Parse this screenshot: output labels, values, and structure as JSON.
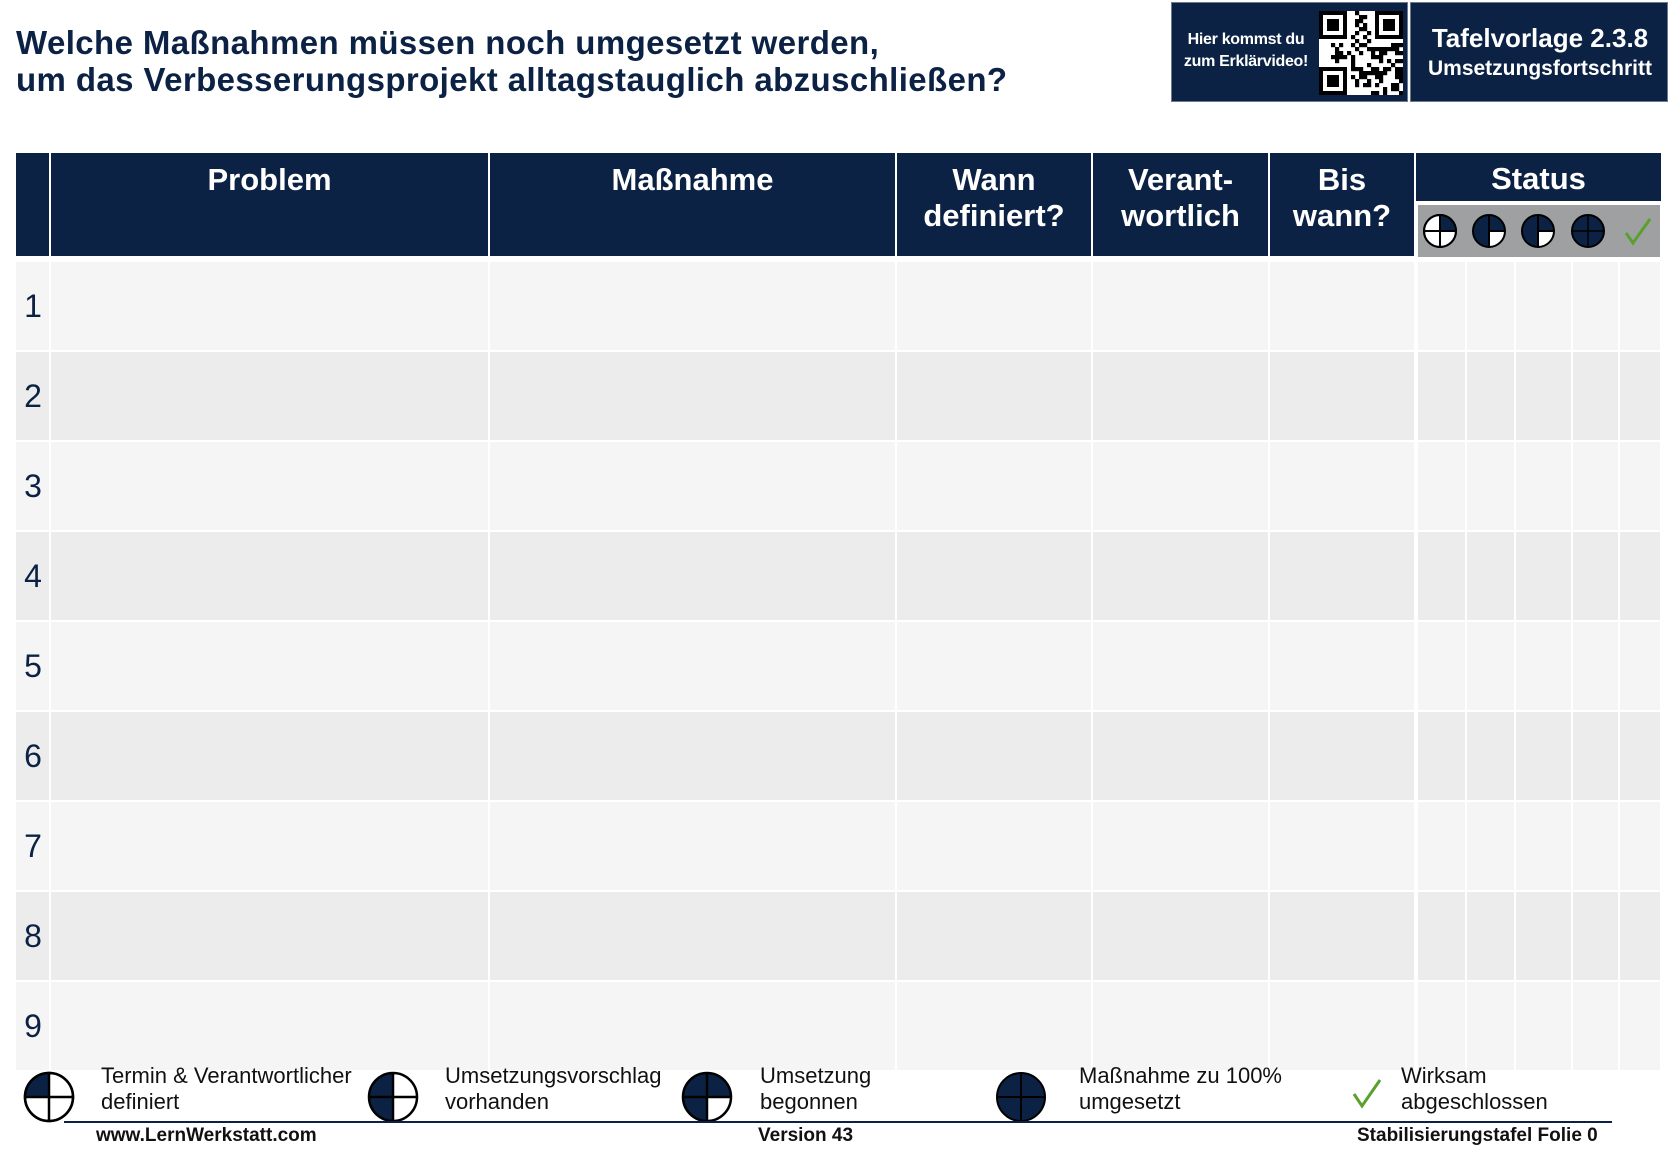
{
  "header": {
    "title_line1": "Welche Maßnahmen müssen noch umgesetzt werden,",
    "title_line2": "um das Verbesserungsprojekt alltagstauglich abzuschließen?",
    "qr_text_line1": "Hier kommst du",
    "qr_text_line2": "zum Erklärvideo!",
    "tafel_title": "Tafelvorlage 2.3.8",
    "tafel_subtitle": "Umsetzungsfortschritt"
  },
  "table": {
    "columns": {
      "problem": "Problem",
      "massnahme": "Maßnahme",
      "wann_1": "Wann",
      "wann_2": "definiert?",
      "verant_1": "Verant-",
      "verant_2": "wortlich",
      "bis_1": "Bis",
      "bis_2": "wann?",
      "status": "Status"
    },
    "status_icons": [
      "quarter-circle-icon",
      "half-circle-icon",
      "three-quarter-circle-icon",
      "full-circle-icon",
      "checkmark-icon"
    ],
    "rows": [
      "1",
      "2",
      "3",
      "4",
      "5",
      "6",
      "7",
      "8",
      "9"
    ]
  },
  "legend": [
    {
      "line1": "Termin & Verantwortlicher",
      "line2": "definiert",
      "icon": "quarter-circle-icon"
    },
    {
      "line1": "Umsetzungsvorschlag",
      "line2": "vorhanden",
      "icon": "half-circle-icon"
    },
    {
      "line1": "Umsetzung",
      "line2": "begonnen",
      "icon": "three-quarter-circle-icon"
    },
    {
      "line1": "Maßnahme zu 100%",
      "line2": "umgesetzt",
      "icon": "full-circle-icon"
    },
    {
      "line1": "Wirksam",
      "line2": "abgeschlossen",
      "icon": "checkmark-icon"
    }
  ],
  "footer": {
    "website": "www.LernWerkstatt.com",
    "version": "Version 43",
    "folie": "Stabilisierungstafel Folie 0"
  },
  "colors": {
    "navy": "#0c2244",
    "row_light": "#f5f5f5",
    "row_dark": "#ececec",
    "check_green": "#5aa02c"
  }
}
